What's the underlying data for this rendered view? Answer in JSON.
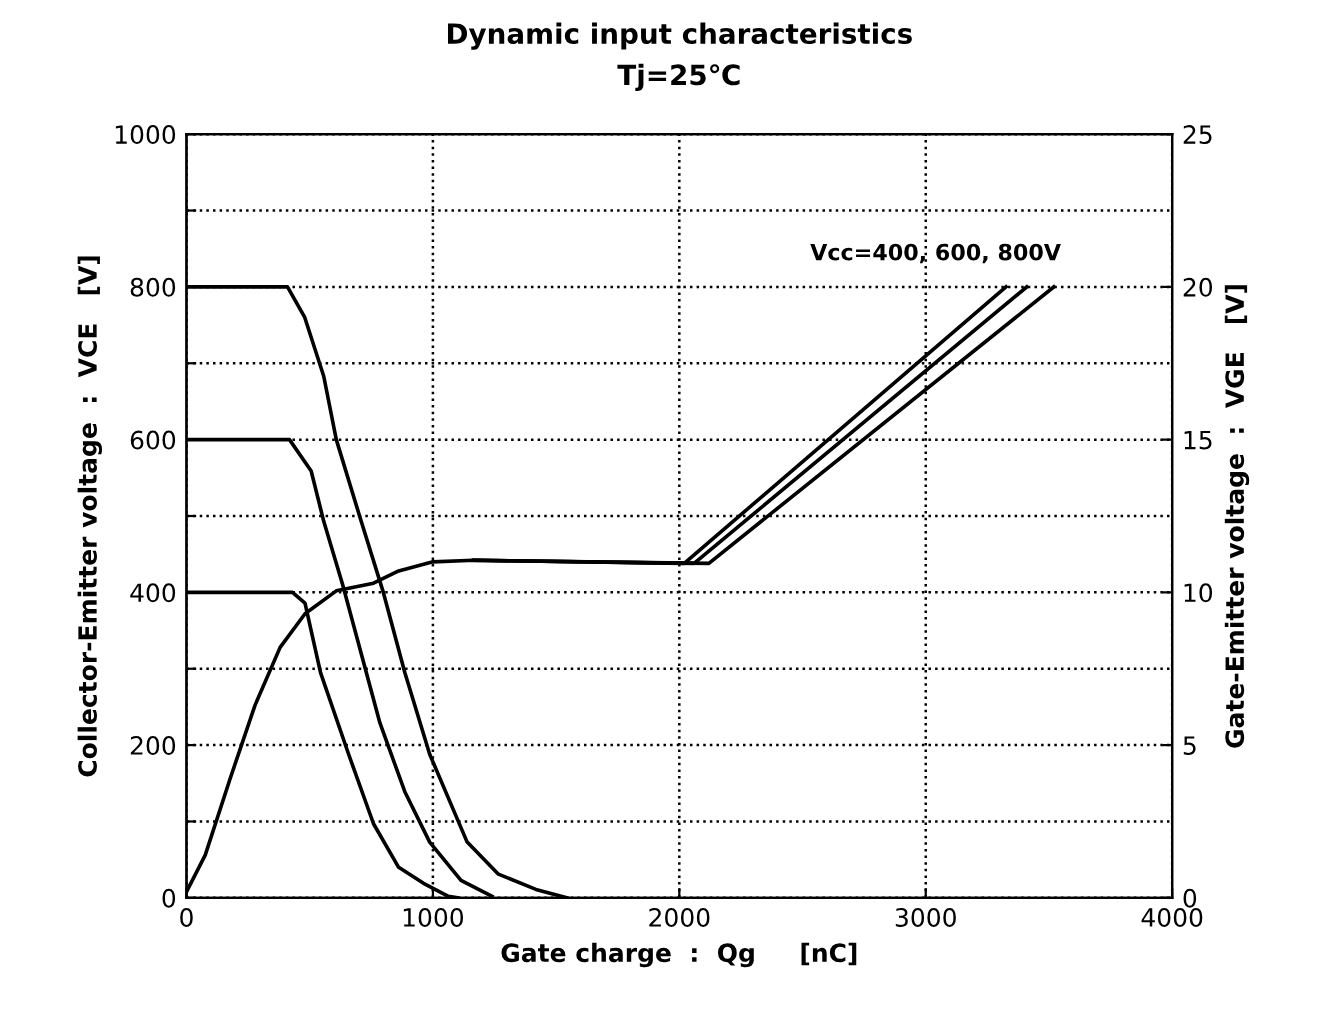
{
  "chart_data": {
    "type": "line",
    "title": "Dynamic input characteristics",
    "subtitle": "Tj=25℃",
    "xlabel": "Gate charge  :  Qg     [nC]",
    "ylabel": "Collector-Emitter voltage  :  VCE   [V]",
    "y2label": "Gate-Emitter voltage  :  VGE   [V]",
    "annotations": [
      "Vcc=400, 600, 800V"
    ],
    "xlim": [
      0,
      4000
    ],
    "xticks": [
      0,
      1000,
      2000,
      3000,
      4000
    ],
    "ylim": [
      0,
      1000
    ],
    "yticks": [
      0,
      {
        "value": 100,
        "label": null
      },
      200,
      {
        "value": 300,
        "label": null
      },
      400,
      {
        "value": 500,
        "label": null
      },
      600,
      {
        "value": 700,
        "label": null
      },
      800,
      {
        "value": 900,
        "label": null
      },
      1000
    ],
    "y2lim": [
      0,
      25
    ],
    "y2ticks": [
      0,
      5,
      10,
      15,
      20,
      25
    ],
    "grid": true,
    "line_style": "solid",
    "marker": "none",
    "legend": false,
    "series": [
      {
        "color": "#000000",
        "x": [
          0,
          430,
          481,
          544,
          658,
          759,
          861,
          962,
          1063,
          1100
        ],
        "values": [
          400,
          400,
          386,
          295,
          188,
          97,
          40,
          19,
          2,
          0
        ]
      },
      {
        "color": "#000000",
        "x": [
          0,
          418,
          506,
          557,
          633,
          709,
          785,
          886,
          987,
          1114,
          1240
        ],
        "values": [
          600,
          600,
          559,
          493,
          411,
          320,
          229,
          139,
          73,
          23,
          2
        ]
      },
      {
        "color": "#000000",
        "x": [
          0,
          410,
          480,
          557,
          608,
          709,
          797,
          886,
          987,
          1139,
          1266,
          1418,
          1544
        ],
        "values": [
          800,
          800,
          760,
          683,
          600,
          493,
          402,
          295,
          188,
          73,
          31,
          11,
          0
        ]
      },
      {
        "color": "#000000",
        "axis": "y2",
        "x": [
          0,
          76,
          177,
          278,
          380,
          481,
          608,
          759,
          861,
          1000,
          1165,
          2020,
          3326
        ],
        "values": [
          0.2,
          1.4,
          3.9,
          6.3,
          8.2,
          9.3,
          10.05,
          10.3,
          10.7,
          11.0,
          11.05,
          10.95,
          20
        ]
      },
      {
        "color": "#000000",
        "axis": "y2",
        "x": [
          1165,
          2060,
          3410
        ],
        "values": [
          11.05,
          10.95,
          20
        ]
      },
      {
        "color": "#000000",
        "axis": "y2",
        "x": [
          1165,
          2120,
          3520
        ],
        "values": [
          11.05,
          10.95,
          20
        ]
      }
    ]
  }
}
